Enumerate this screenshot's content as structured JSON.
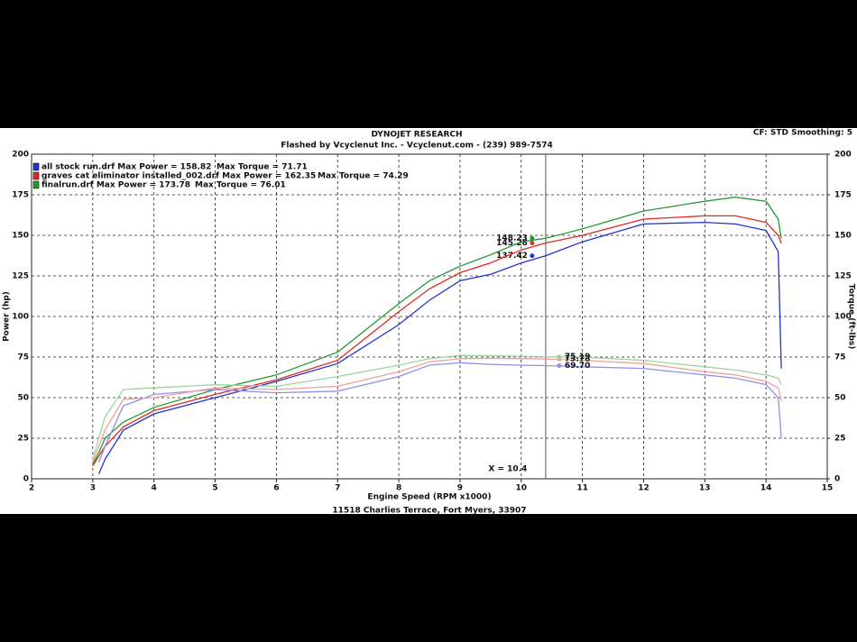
{
  "chart_data": {
    "type": "line",
    "title": "DYNOJET RESEARCH",
    "subtitle": "Flashed by Vcyclenut Inc. - Vcyclenut.com - (239) 989-7574",
    "settings_text": "CF: STD  Smoothing: 5",
    "footer": "11518  Charlies Terrace, Fort Myers, 33907",
    "xlabel": "Engine Speed (RPM x1000)",
    "ylabel": "Power (hp)",
    "y2label": "Torque (ft-lbs)",
    "grid": true,
    "xlim": [
      2,
      15
    ],
    "xticks": [
      2,
      3,
      4,
      5,
      6,
      7,
      8,
      9,
      10,
      11,
      12,
      13,
      14,
      15
    ],
    "ylim": [
      0,
      200
    ],
    "yticks": [
      0,
      25,
      50,
      75,
      100,
      125,
      150,
      175,
      200
    ],
    "y2lim": [
      0,
      200
    ],
    "y2ticks": [
      0,
      25,
      50,
      75,
      100,
      125,
      150,
      175,
      200
    ],
    "cursor": {
      "value": 10.4,
      "label": "X = 10.4"
    },
    "legend": [
      {
        "color": "#2233cc",
        "power": "all stock run.drf Max Power = 158.82",
        "torque": "Max Torque = 71.71"
      },
      {
        "color": "#dd2a22",
        "power": "graves cat eliminator installed_002.drf Max Power = 162.35",
        "torque": "Max Torque = 74.29"
      },
      {
        "color": "#229a33",
        "power": "finalrun.drf Max Power = 173.78",
        "torque": "Max Torque = 76.01"
      }
    ],
    "x": [
      3.0,
      3.1,
      3.2,
      3.5,
      4,
      5,
      6,
      7,
      8,
      8.5,
      9,
      9.5,
      10,
      10.4,
      11,
      12,
      13,
      13.5,
      14,
      14.2,
      14.25
    ],
    "series": [
      {
        "color": "#2233cc",
        "axis": "y",
        "cursor_value": 137.42,
        "values": [
          null,
          3,
          12,
          30,
          40,
          50,
          60,
          71,
          95,
          110,
          122,
          126,
          133,
          137.42,
          146,
          157,
          158,
          157,
          153,
          140,
          68
        ]
      },
      {
        "color": "#dd2a22",
        "axis": "y",
        "cursor_value": 145.28,
        "values": [
          8,
          14,
          20,
          32,
          42,
          52,
          61,
          73,
          103,
          117,
          127,
          133,
          141,
          145.28,
          150,
          160,
          162,
          162,
          158,
          150,
          145
        ]
      },
      {
        "color": "#229a33",
        "axis": "y",
        "cursor_value": 148.23,
        "values": [
          9,
          16,
          25,
          35,
          44,
          55,
          64,
          78,
          108,
          122,
          131,
          138,
          146,
          148.23,
          154,
          165,
          171,
          173.5,
          171,
          160,
          148
        ]
      },
      {
        "color": "#8c90ea",
        "axis": "y2",
        "cursor_value": 69.7,
        "cursor_label": "69.70",
        "values": [
          null,
          10,
          20,
          45,
          52,
          55,
          53,
          54,
          63,
          70,
          71.5,
          70.5,
          70,
          69.7,
          69,
          68,
          64,
          62,
          58,
          50,
          25
        ]
      },
      {
        "color": "#f0a09a",
        "axis": "y2",
        "cursor_value": 73.78,
        "values": [
          10,
          20,
          30,
          49,
          50,
          56,
          55,
          57,
          66,
          72,
          74,
          74.2,
          74,
          73.78,
          73,
          71,
          66,
          64,
          60,
          56,
          48
        ]
      },
      {
        "color": "#9cd49c",
        "axis": "y2",
        "cursor_value": 75.19,
        "values": [
          12,
          25,
          38,
          55,
          56,
          58,
          57,
          63,
          70,
          74,
          76,
          75.8,
          75.5,
          75.19,
          75,
          73,
          69,
          67,
          64,
          62,
          58
        ]
      }
    ]
  }
}
